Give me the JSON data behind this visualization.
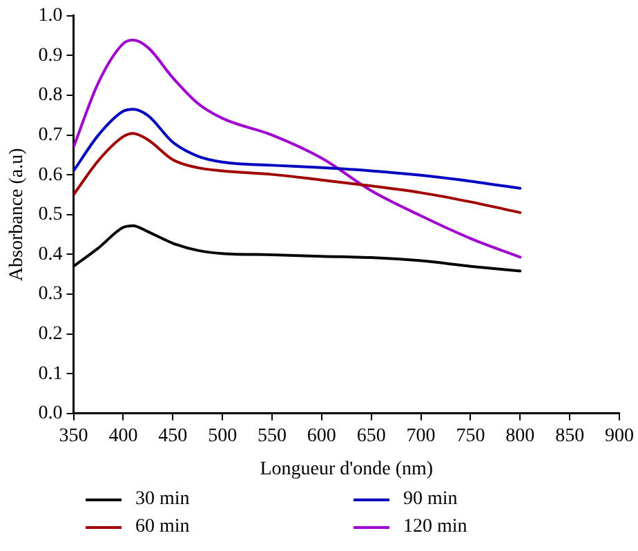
{
  "chart_data": {
    "type": "line",
    "xlabel": "Longueur d'onde (nm)",
    "ylabel": "Absorbance (a.u)",
    "x": [
      350,
      375,
      400,
      410,
      425,
      450,
      475,
      500,
      550,
      600,
      650,
      700,
      750,
      800
    ],
    "series": [
      {
        "name": "30 min",
        "color": "#000000",
        "values": [
          0.37,
          0.416,
          0.468,
          0.472,
          0.457,
          0.428,
          0.41,
          0.402,
          0.399,
          0.395,
          0.392,
          0.384,
          0.37,
          0.358
        ]
      },
      {
        "name": "60 min",
        "color": "#a00000",
        "values": [
          0.55,
          0.636,
          0.696,
          0.704,
          0.688,
          0.638,
          0.618,
          0.61,
          0.601,
          0.587,
          0.572,
          0.555,
          0.532,
          0.505
        ]
      },
      {
        "name": "90 min",
        "color": "#0000c0",
        "values": [
          0.61,
          0.7,
          0.76,
          0.765,
          0.749,
          0.682,
          0.647,
          0.632,
          0.624,
          0.618,
          0.61,
          0.599,
          0.584,
          0.566
        ]
      },
      {
        "name": "120 min",
        "color": "#a000d0",
        "values": [
          0.67,
          0.832,
          0.93,
          0.939,
          0.92,
          0.844,
          0.78,
          0.742,
          0.7,
          0.642,
          0.56,
          0.497,
          0.44,
          0.393
        ]
      }
    ],
    "xlim": [
      350,
      900
    ],
    "xticks": [
      350,
      400,
      450,
      500,
      550,
      600,
      650,
      700,
      750,
      800,
      850,
      900
    ],
    "ylim": [
      0,
      1
    ],
    "yticks": [
      {
        "value": 0,
        "label": "0.0"
      },
      0.1,
      0.2,
      0.3,
      0.4,
      0.5,
      0.6,
      0.7,
      0.8,
      0.9,
      {
        "value": 1,
        "label": "1.0"
      }
    ],
    "grid": false,
    "legend": "bottom",
    "marker": "none",
    "line_style": "solid"
  }
}
